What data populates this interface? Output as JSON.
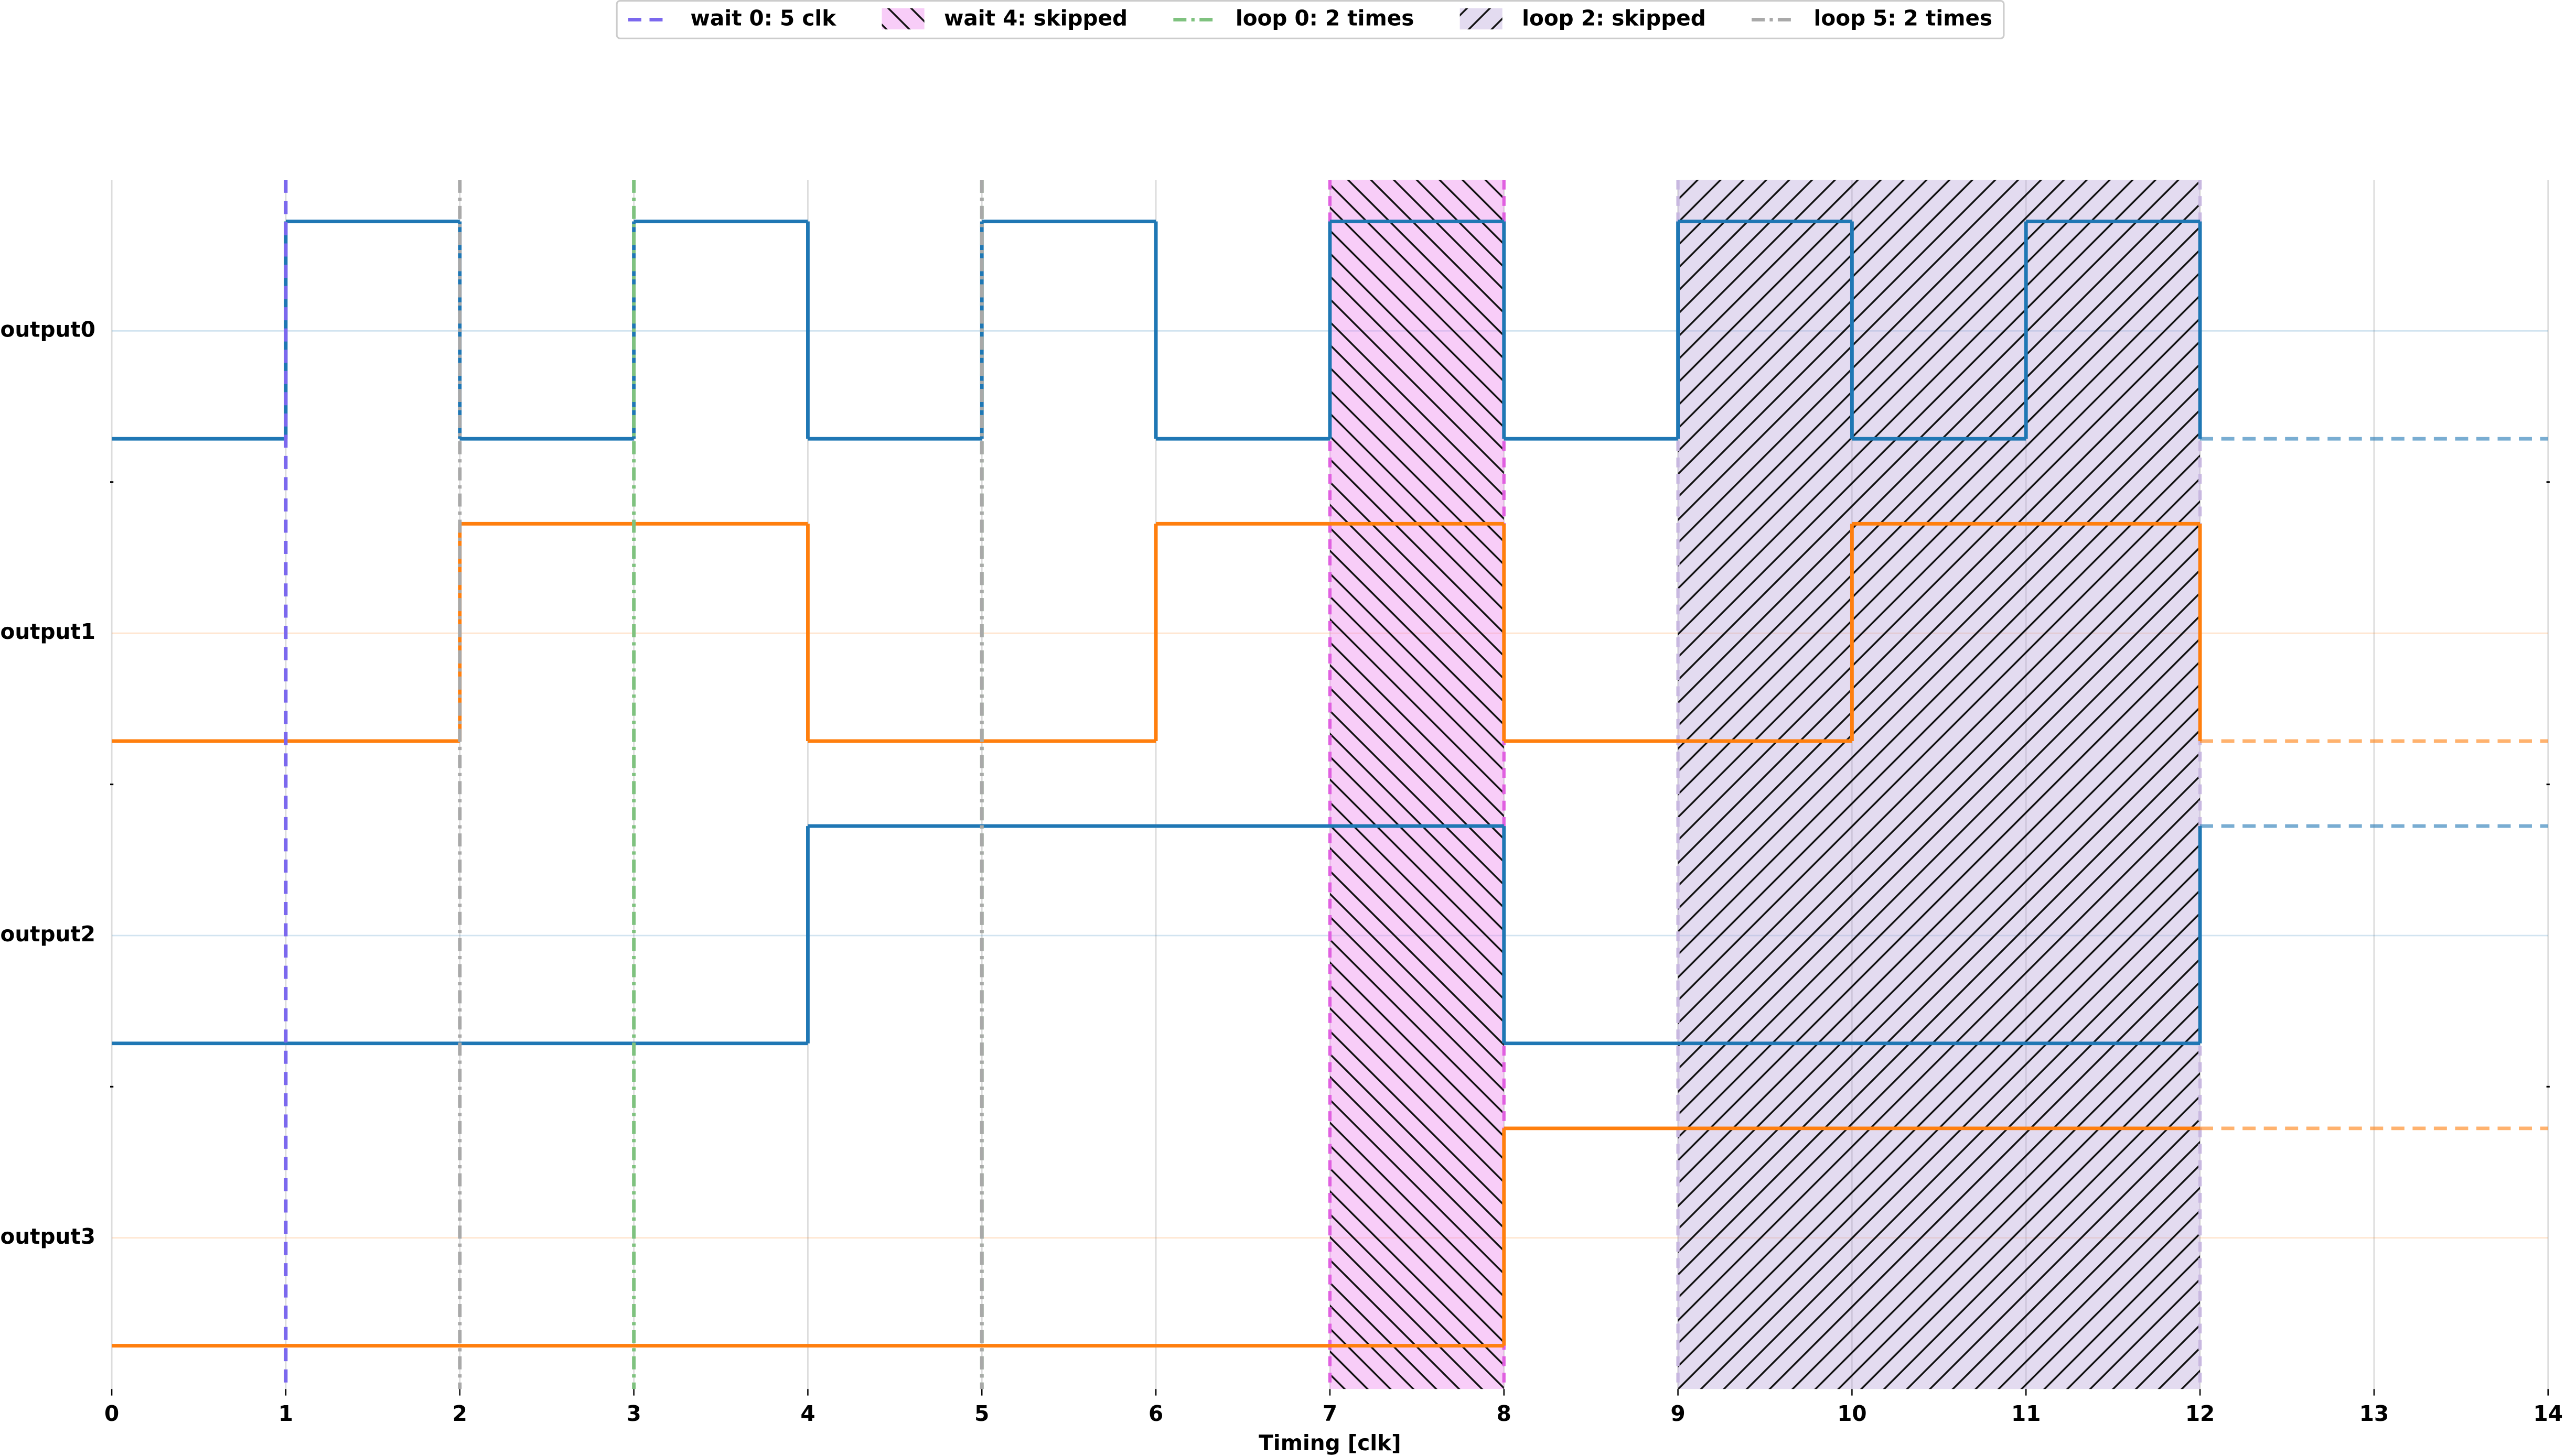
{
  "chart_data": {
    "type": "timing",
    "xlabel": "Timing [clk]",
    "xlim": [
      0,
      14
    ],
    "xticks": [
      0,
      1,
      2,
      3,
      4,
      5,
      6,
      7,
      8,
      9,
      10,
      11,
      12,
      13,
      14
    ],
    "grid": true,
    "legend": "top",
    "x": [
      0,
      1,
      2,
      3,
      4,
      5,
      6,
      7,
      8,
      9,
      10,
      11,
      12
    ],
    "series": [
      {
        "name": "output0",
        "color": "#1f77b4",
        "values": [
          0,
          1,
          0,
          1,
          0,
          1,
          0,
          1,
          0,
          1,
          0,
          1,
          0
        ]
      },
      {
        "name": "output1",
        "color": "#ff7f0e",
        "values": [
          0,
          0,
          1,
          1,
          0,
          0,
          1,
          1,
          0,
          0,
          1,
          1,
          0
        ]
      },
      {
        "name": "output2",
        "color": "#1f77b4",
        "values": [
          0,
          0,
          0,
          0,
          1,
          1,
          1,
          1,
          0,
          0,
          0,
          0,
          1
        ]
      },
      {
        "name": "output3",
        "color": "#ff7f0e",
        "values": [
          0,
          0,
          0,
          0,
          0,
          0,
          0,
          0,
          1,
          1,
          1,
          1,
          1
        ]
      }
    ],
    "events": [
      {
        "name": "wait 0: 5 clk",
        "kind": "line",
        "style": "dashed",
        "color": "#7b68ee",
        "x": [
          1
        ]
      },
      {
        "name": "wait 4: skipped",
        "kind": "span",
        "hatch": "back",
        "color": "#ee82ee",
        "edge": "#e060e0",
        "x": [
          7,
          8
        ]
      },
      {
        "name": "loop 0: 2 times",
        "kind": "line",
        "style": "dashdot",
        "color": "#7fc27f",
        "x": [
          3,
          5
        ]
      },
      {
        "name": "loop 2: skipped",
        "kind": "span",
        "hatch": "forward",
        "color": "#b8a6d9",
        "edge": "#c8b8e0",
        "x": [
          9,
          12
        ]
      },
      {
        "name": "loop 5: 2 times",
        "kind": "line",
        "style": "dashdot",
        "color": "#a9a9a9",
        "x": [
          2,
          5
        ]
      }
    ]
  }
}
